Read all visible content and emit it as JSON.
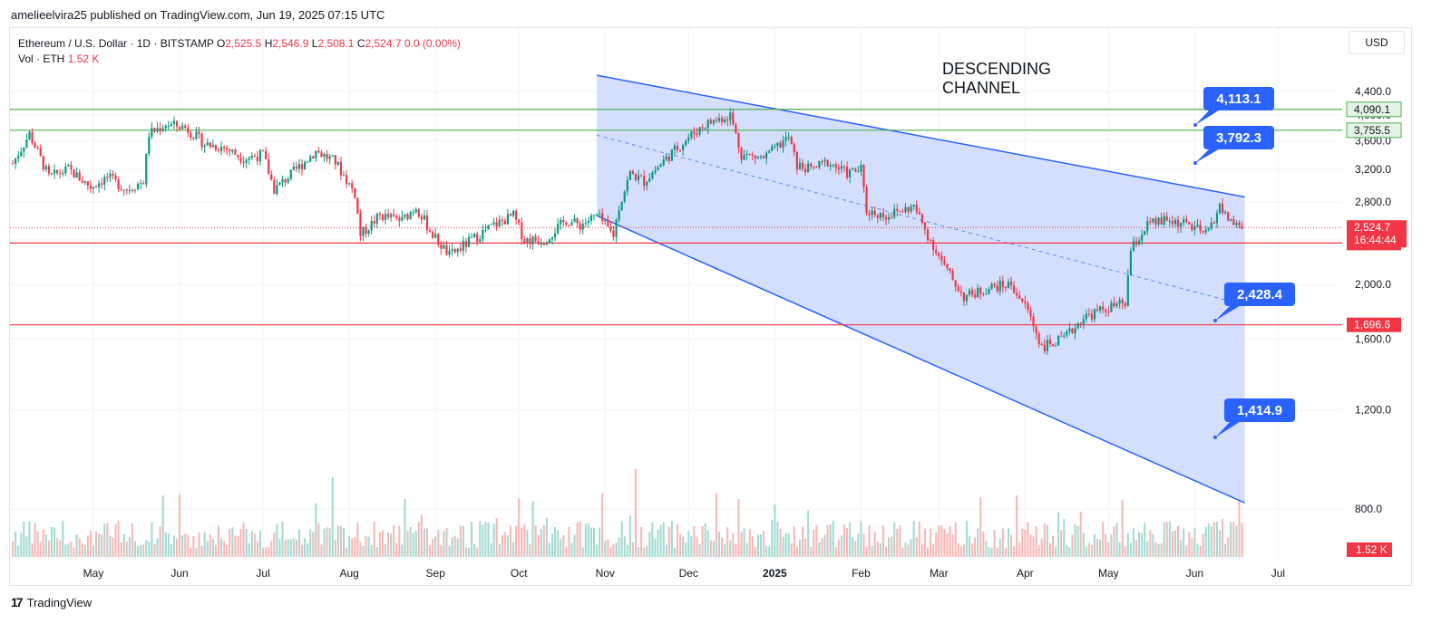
{
  "header": {
    "published": "amelieelvira25 published on TradingView.com, Jun 19, 2025 07:15 UTC"
  },
  "legend": {
    "symbol": "Ethereum / U.S. Dollar · 1D · BITSTAMP",
    "o_label": "O",
    "o": "2,525.5",
    "h_label": "H",
    "h": "2,546.9",
    "l_label": "L",
    "l": "2,508.1",
    "c_label": "C",
    "c": "2,524.7",
    "change": "0.0 (0.00%)",
    "vol_label": "Vol · ETH",
    "vol": "1.52 K"
  },
  "currency_button": "USD",
  "annotation_text": "DESCENDING\nCHANNEL",
  "footer": {
    "logo": "17",
    "brand": "TradingView"
  },
  "colors": {
    "up": "#089981",
    "down": "#f23645",
    "channel": "#2962ff",
    "channel_fill": "#cfdcfd",
    "resistance": "#4caf50",
    "support": "#f23645",
    "label_blue": "#2962ff"
  },
  "chart_data": {
    "type": "candlestick",
    "symbol": "ETHUSD",
    "timeframe": "1D",
    "y_axis": {
      "scale": "log",
      "ticks": [
        "4,400.0",
        "4,000.0",
        "3,600.0",
        "3,200.0",
        "2,800.0",
        "2,400.0",
        "2,000.0",
        "1,600.0",
        "1,200.0",
        "800.0"
      ],
      "tick_values": [
        4400,
        4000,
        3600,
        3200,
        2800,
        2400,
        2000,
        1600,
        1200,
        800
      ]
    },
    "x_axis": {
      "ticks": [
        "May",
        "Jun",
        "Jul",
        "Aug",
        "Sep",
        "Oct",
        "Nov",
        "Dec",
        "2025",
        "Feb",
        "Mar",
        "Apr",
        "May",
        "Jun",
        "Jul"
      ],
      "tick_dates": [
        "2024-05-01",
        "2024-06-01",
        "2024-07-01",
        "2024-08-01",
        "2024-09-01",
        "2024-10-01",
        "2024-11-01",
        "2024-12-01",
        "2025-01-01",
        "2025-02-01",
        "2025-03-01",
        "2025-04-01",
        "2025-05-01",
        "2025-06-01",
        "2025-07-01"
      ]
    },
    "close_path": [
      [
        "2024-04-02",
        3280
      ],
      [
        "2024-04-08",
        3700
      ],
      [
        "2024-04-15",
        3100
      ],
      [
        "2024-04-22",
        3200
      ],
      [
        "2024-04-30",
        2980
      ],
      [
        "2024-05-06",
        3100
      ],
      [
        "2024-05-13",
        2950
      ],
      [
        "2024-05-19",
        3050
      ],
      [
        "2024-05-21",
        3700
      ],
      [
        "2024-05-27",
        3850
      ],
      [
        "2024-06-03",
        3800
      ],
      [
        "2024-06-10",
        3550
      ],
      [
        "2024-06-17",
        3500
      ],
      [
        "2024-06-24",
        3350
      ],
      [
        "2024-07-01",
        3400
      ],
      [
        "2024-07-05",
        2950
      ],
      [
        "2024-07-10",
        3100
      ],
      [
        "2024-07-20",
        3450
      ],
      [
        "2024-07-27",
        3300
      ],
      [
        "2024-08-03",
        2900
      ],
      [
        "2024-08-05",
        2450
      ],
      [
        "2024-08-12",
        2650
      ],
      [
        "2024-08-20",
        2600
      ],
      [
        "2024-08-25",
        2750
      ],
      [
        "2024-08-31",
        2450
      ],
      [
        "2024-09-06",
        2250
      ],
      [
        "2024-09-14",
        2400
      ],
      [
        "2024-09-22",
        2550
      ],
      [
        "2024-09-29",
        2650
      ],
      [
        "2024-10-03",
        2400
      ],
      [
        "2024-10-10",
        2400
      ],
      [
        "2024-10-18",
        2600
      ],
      [
        "2024-10-23",
        2550
      ],
      [
        "2024-10-29",
        2650
      ],
      [
        "2024-11-04",
        2450
      ],
      [
        "2024-11-06",
        2750
      ],
      [
        "2024-11-10",
        3150
      ],
      [
        "2024-11-15",
        3050
      ],
      [
        "2024-11-23",
        3350
      ],
      [
        "2024-12-01",
        3650
      ],
      [
        "2024-12-07",
        3850
      ],
      [
        "2024-12-16",
        4000
      ],
      [
        "2024-12-20",
        3400
      ],
      [
        "2024-12-28",
        3350
      ],
      [
        "2025-01-06",
        3650
      ],
      [
        "2025-01-09",
        3250
      ],
      [
        "2025-01-14",
        3200
      ],
      [
        "2025-01-20",
        3300
      ],
      [
        "2025-01-27",
        3150
      ],
      [
        "2025-02-01",
        3200
      ],
      [
        "2025-02-03",
        2700
      ],
      [
        "2025-02-10",
        2650
      ],
      [
        "2025-02-20",
        2750
      ],
      [
        "2025-02-25",
        2450
      ],
      [
        "2025-03-03",
        2150
      ],
      [
        "2025-03-10",
        1900
      ],
      [
        "2025-03-20",
        1980
      ],
      [
        "2025-03-27",
        2000
      ],
      [
        "2025-04-02",
        1800
      ],
      [
        "2025-04-07",
        1550
      ],
      [
        "2025-04-15",
        1600
      ],
      [
        "2025-04-22",
        1750
      ],
      [
        "2025-05-01",
        1820
      ],
      [
        "2025-05-07",
        1850
      ],
      [
        "2025-05-09",
        2300
      ],
      [
        "2025-05-15",
        2550
      ],
      [
        "2025-05-22",
        2600
      ],
      [
        "2025-05-30",
        2550
      ],
      [
        "2025-06-05",
        2450
      ],
      [
        "2025-06-10",
        2750
      ],
      [
        "2025-06-12",
        2650
      ],
      [
        "2025-06-16",
        2550
      ],
      [
        "2025-06-19",
        2524.7
      ]
    ],
    "horizontal_levels": [
      {
        "value": 4090.1,
        "label": "4,090.1",
        "kind": "resistance"
      },
      {
        "value": 3755.5,
        "label": "3,755.5",
        "kind": "resistance"
      },
      {
        "value": 2369.5,
        "label": "2,369.5",
        "kind": "support"
      },
      {
        "value": 1696.6,
        "label": "1,696.6",
        "kind": "support"
      }
    ],
    "last_price": {
      "value": 2524.7,
      "label": "2,524.7",
      "countdown": "16:44:44"
    },
    "volume_last": "1.52 K",
    "price_callouts": [
      {
        "value": 4113.1,
        "label": "4,113.1"
      },
      {
        "value": 3792.3,
        "label": "3,792.3"
      },
      {
        "value": 2428.4,
        "label": "2,428.4"
      },
      {
        "value": 1414.9,
        "label": "1,414.9"
      }
    ],
    "channel": {
      "start_date": "2024-10-29",
      "end_date": "2025-06-19",
      "upper": [
        4700,
        2860
      ],
      "lower": [
        2650,
        820
      ],
      "mid": [
        3680,
        1840
      ]
    }
  }
}
